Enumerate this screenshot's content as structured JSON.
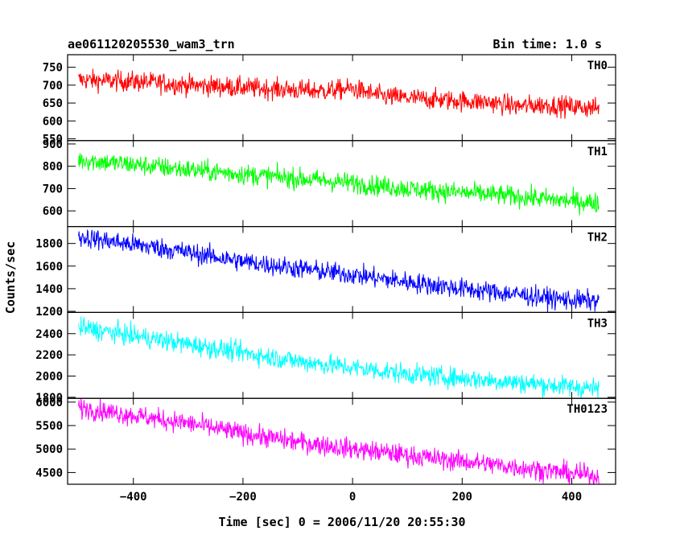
{
  "chart_data": {
    "type": "line",
    "title": "ae061120205530_wam3_trn",
    "subtitle": "Bin time: 1.0 s",
    "xlabel": "Time [sec] 0 = 2006/11/20 20:55:30",
    "ylabel": "Counts/sec",
    "xlim": [
      -520,
      480
    ],
    "x_ticks": [
      -400,
      -200,
      0,
      200,
      400
    ],
    "x_tick_labels": [
      "−400",
      "−200",
      "0",
      "200",
      "400"
    ],
    "grid": false,
    "panels": [
      {
        "name": "TH0",
        "color": "#ff0000",
        "ylim": [
          545,
          785
        ],
        "y_ticks": [
          550,
          600,
          650,
          700,
          750
        ],
        "y_tick_labels": [
          "550",
          "600",
          "650",
          "700",
          "750"
        ],
        "x": [
          -500,
          -450,
          -400,
          -350,
          -300,
          -250,
          -200,
          -150,
          -100,
          -50,
          0,
          50,
          100,
          150,
          200,
          250,
          300,
          350,
          400,
          450
        ],
        "y": [
          715,
          712,
          710,
          706,
          700,
          697,
          693,
          690,
          686,
          684,
          690,
          670,
          664,
          660,
          656,
          652,
          641,
          645,
          640,
          635
        ]
      },
      {
        "name": "TH1",
        "color": "#00ff00",
        "ylim": [
          530,
          915
        ],
        "y_ticks": [
          600,
          700,
          800,
          900
        ],
        "y_tick_labels": [
          "600",
          "700",
          "800",
          "900"
        ],
        "x": [
          -500,
          -450,
          -400,
          -350,
          -300,
          -250,
          -200,
          -150,
          -100,
          -50,
          0,
          50,
          100,
          150,
          200,
          250,
          300,
          350,
          400,
          450
        ],
        "y": [
          830,
          818,
          808,
          796,
          785,
          775,
          765,
          755,
          745,
          735,
          725,
          712,
          700,
          690,
          682,
          674,
          664,
          654,
          644,
          635
        ]
      },
      {
        "name": "TH2",
        "color": "#0000ff",
        "ylim": [
          1190,
          1950
        ],
        "y_ticks": [
          1200,
          1400,
          1600,
          1800
        ],
        "y_tick_labels": [
          "1200",
          "1400",
          "1600",
          "1800"
        ],
        "x": [
          -500,
          -450,
          -400,
          -350,
          -300,
          -250,
          -200,
          -150,
          -100,
          -50,
          0,
          50,
          100,
          150,
          200,
          250,
          300,
          350,
          400,
          450
        ],
        "y": [
          1860,
          1825,
          1790,
          1760,
          1720,
          1680,
          1640,
          1610,
          1580,
          1550,
          1525,
          1490,
          1460,
          1430,
          1400,
          1375,
          1350,
          1320,
          1300,
          1290
        ]
      },
      {
        "name": "TH3",
        "color": "#00ffff",
        "ylim": [
          1790,
          2600
        ],
        "y_ticks": [
          1800,
          2000,
          2200,
          2400
        ],
        "y_tick_labels": [
          "1800",
          "2000",
          "2200",
          "2400"
        ],
        "x": [
          -500,
          -450,
          -400,
          -350,
          -300,
          -250,
          -200,
          -150,
          -100,
          -50,
          0,
          50,
          100,
          150,
          200,
          250,
          300,
          350,
          400,
          450
        ],
        "y": [
          2460,
          2420,
          2380,
          2340,
          2300,
          2260,
          2220,
          2180,
          2140,
          2110,
          2080,
          2050,
          2020,
          2000,
          1980,
          1960,
          1940,
          1920,
          1900,
          1880
        ]
      },
      {
        "name": "TH0123",
        "color": "#ff00ff",
        "ylim": [
          4250,
          6080
        ],
        "y_ticks": [
          4500,
          5000,
          5500,
          6000
        ],
        "y_tick_labels": [
          "4500",
          "5000",
          "5500",
          "6000"
        ],
        "x": [
          -500,
          -450,
          -400,
          -350,
          -300,
          -250,
          -200,
          -150,
          -100,
          -50,
          0,
          50,
          100,
          150,
          200,
          250,
          300,
          350,
          400,
          450
        ],
        "y": [
          5890,
          5800,
          5720,
          5630,
          5550,
          5440,
          5330,
          5240,
          5150,
          5080,
          5000,
          4940,
          4870,
          4800,
          4740,
          4680,
          4610,
          4550,
          4480,
          4420
        ]
      }
    ]
  }
}
